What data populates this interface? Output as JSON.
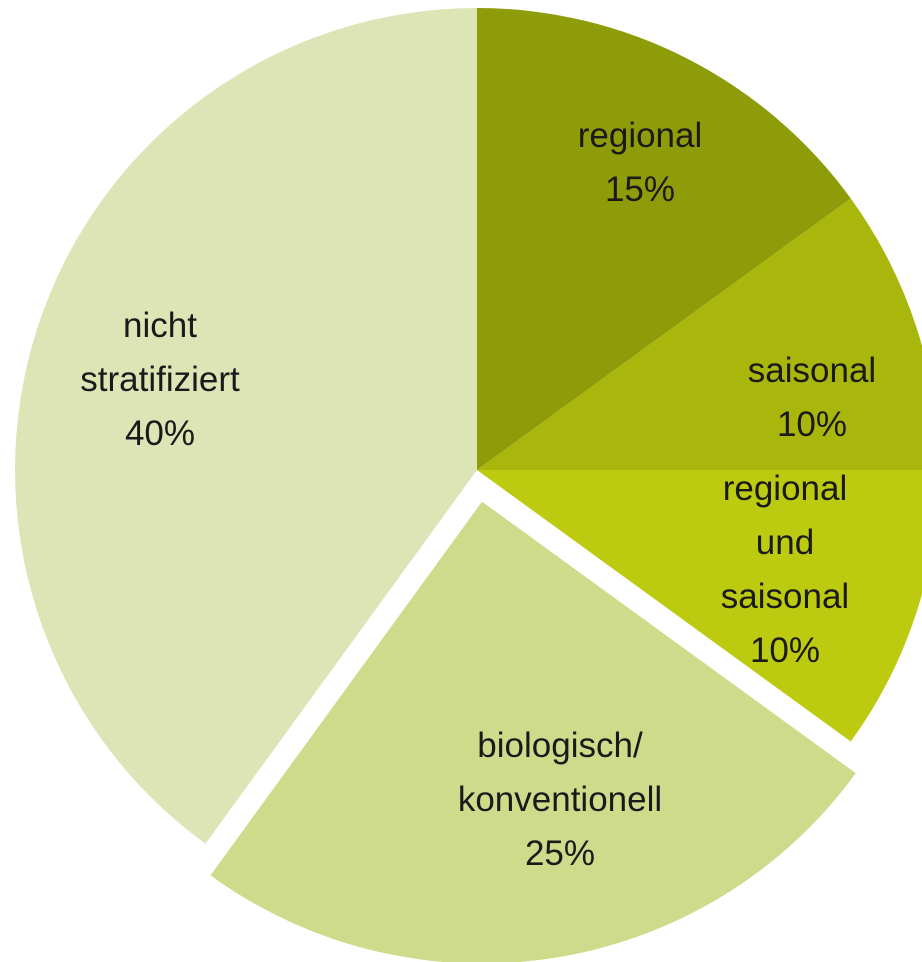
{
  "chart_data": {
    "type": "pie",
    "categories": [
      "regional",
      "saisonal",
      "regional und\nsaisonal",
      "biologisch/\nkonventionell",
      "nicht\nstratifiziert"
    ],
    "values": [
      15,
      10,
      10,
      25,
      40
    ],
    "value_labels": [
      "15%",
      "10%",
      "10%",
      "25%",
      "40%"
    ],
    "colors": [
      "#8f9c0a",
      "#a9b70d",
      "#bccb10",
      "#cedb8a",
      "#dde5b6"
    ],
    "exploded": [
      false,
      false,
      false,
      true,
      false
    ]
  }
}
